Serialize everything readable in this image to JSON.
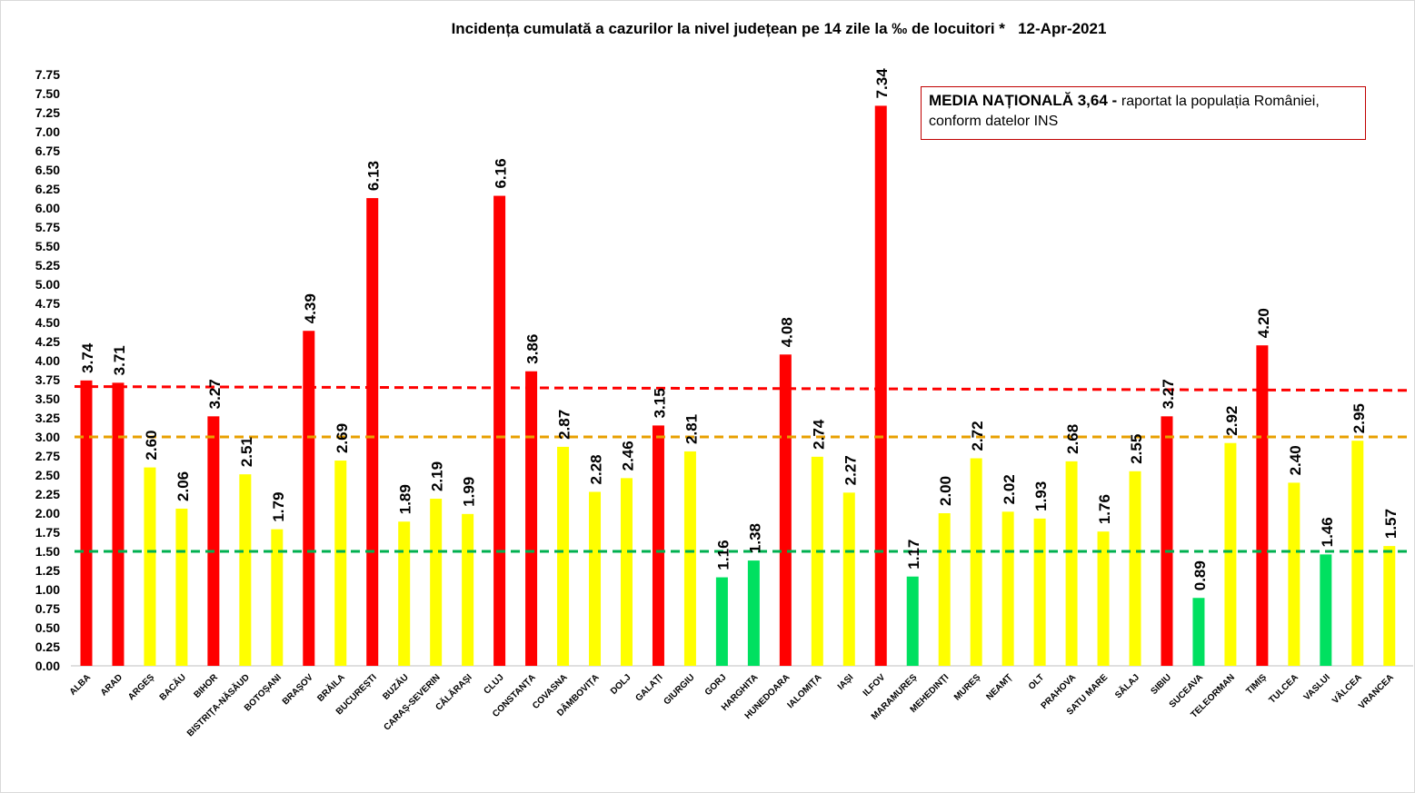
{
  "chart_data": {
    "type": "bar",
    "title": "Incidența cumulată a cazurilor la nivel județean pe 14 zile la ‰ de locuitori *   12-Apr-2021",
    "xlabel": "",
    "ylabel": "",
    "ylim": [
      0,
      7.75
    ],
    "ytick_step": 0.25,
    "grid": false,
    "categories": [
      "ALBA",
      "ARAD",
      "ARGEȘ",
      "BACĂU",
      "BIHOR",
      "BISTRIȚA-NĂSĂUD",
      "BOTOȘANI",
      "BRAȘOV",
      "BRĂILA",
      "BUCUREȘTI",
      "BUZĂU",
      "CARAȘ-SEVERIN",
      "CĂLĂRAȘI",
      "CLUJ",
      "CONSTANȚA",
      "COVASNA",
      "DÂMBOVIȚA",
      "DOLJ",
      "GALAȚI",
      "GIURGIU",
      "GORJ",
      "HARGHITA",
      "HUNEDOARA",
      "IALOMIȚA",
      "IAȘI",
      "ILFOV",
      "MARAMUREȘ",
      "MEHEDINȚI",
      "MUREȘ",
      "NEAMȚ",
      "OLT",
      "PRAHOVA",
      "SATU MARE",
      "SĂLAJ",
      "SIBIU",
      "SUCEAVA",
      "TELEORMAN",
      "TIMIȘ",
      "TULCEA",
      "VASLUI",
      "VÂLCEA",
      "VRANCEA"
    ],
    "values": [
      3.74,
      3.71,
      2.6,
      2.06,
      3.27,
      2.51,
      1.79,
      4.39,
      2.69,
      6.13,
      1.89,
      2.19,
      1.99,
      6.16,
      3.86,
      2.87,
      2.28,
      2.46,
      3.15,
      2.81,
      1.16,
      1.38,
      4.08,
      2.74,
      2.27,
      7.34,
      1.17,
      2.0,
      2.72,
      2.02,
      1.93,
      2.68,
      1.76,
      2.55,
      3.27,
      0.89,
      2.92,
      4.2,
      2.4,
      1.46,
      2.95,
      1.57
    ],
    "value_labels": [
      "3.74",
      "3.71",
      "2.60",
      "2.06",
      "3.27",
      "2.51",
      "1.79",
      "4.39",
      "2.69",
      "6.13",
      "1.89",
      "2.19",
      "1.99",
      "6.16",
      "3.86",
      "2.87",
      "2.28",
      "2.46",
      "3.15",
      "2.81",
      "1.16",
      "1.38",
      "4.08",
      "2.74",
      "2.27",
      "7.34",
      "1.17",
      "2.00",
      "2.72",
      "2.02",
      "1.93",
      "2.68",
      "1.76",
      "2.55",
      "3.27",
      "0.89",
      "2.92",
      "4.20",
      "2.40",
      "1.46",
      "2.95",
      "1.57"
    ],
    "bar_colors": [
      "#ff0000",
      "#ff0000",
      "#ffff00",
      "#ffff00",
      "#ff0000",
      "#ffff00",
      "#ffff00",
      "#ff0000",
      "#ffff00",
      "#ff0000",
      "#ffff00",
      "#ffff00",
      "#ffff00",
      "#ff0000",
      "#ff0000",
      "#ffff00",
      "#ffff00",
      "#ffff00",
      "#ff0000",
      "#ffff00",
      "#00e060",
      "#00e060",
      "#ff0000",
      "#ffff00",
      "#ffff00",
      "#ff0000",
      "#00e060",
      "#ffff00",
      "#ffff00",
      "#ffff00",
      "#ffff00",
      "#ffff00",
      "#ffff00",
      "#ffff00",
      "#ff0000",
      "#00e060",
      "#ffff00",
      "#ff0000",
      "#ffff00",
      "#00e060",
      "#ffff00",
      "#ffff00"
    ],
    "reference_lines": [
      {
        "value_start": 3.66,
        "value_end": 3.61,
        "color": "#ff0000"
      },
      {
        "value_start": 3.0,
        "value_end": 3.0,
        "color": "#e8a000"
      },
      {
        "value_start": 1.5,
        "value_end": 1.5,
        "color": "#00b050"
      }
    ],
    "legend": "none",
    "annotation": {
      "bold": "MEDIA NAȚIONALĂ  3,64 - ",
      "text": "raportat la populația României,",
      "text2": "conform datelor INS",
      "border_color": "#c00000"
    }
  }
}
